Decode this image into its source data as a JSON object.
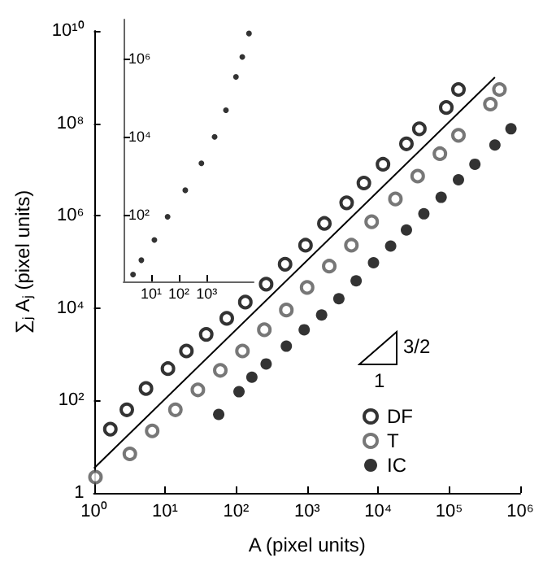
{
  "chart_data": [
    {
      "type": "scatter",
      "xlabel": "A (pixel units)",
      "ylabel": "∑$_{j}$ A$_{j}$ (pixel units)",
      "log": "xy",
      "marker": "circle",
      "legend": "bottom right",
      "grid": false,
      "xlim": [
        1,
        1000000
      ],
      "ylim": [
        1,
        10000000000
      ],
      "xticks": [
        {
          "value": 1,
          "label": "10⁰"
        },
        {
          "value": 10,
          "label": "10¹"
        },
        {
          "value": 100,
          "label": "10²"
        },
        {
          "value": 1000,
          "label": "10³"
        },
        {
          "value": 10000,
          "label": "10⁴"
        },
        {
          "value": 100000,
          "label": "10⁵"
        },
        {
          "value": 1000000,
          "label": "10⁶"
        }
      ],
      "yticks": [
        1,
        {
          "value": 100,
          "label": "10²"
        },
        {
          "value": 10000,
          "label": "10⁴"
        },
        {
          "value": 1000000,
          "label": "10⁶"
        },
        {
          "value": 100000000,
          "label": "10⁸"
        },
        {
          "value": 10000000000,
          "label": "10¹⁰"
        }
      ],
      "annotations": [
        "3/2",
        "1"
      ],
      "series": [
        {
          "name": "DF",
          "color": "#000000",
          "x": [
            1.7,
            2.9,
            5.4,
            11,
            20,
            38,
            74,
            135,
            265,
            490,
            950,
            1750,
            3600,
            6300,
            11700,
            25000,
            38000,
            91000,
            135000
          ],
          "values": [
            24,
            63,
            182,
            490,
            1180,
            2700,
            6000,
            13500,
            33000,
            89000,
            230000,
            680000,
            1900000,
            5100000,
            13000000,
            36000000,
            76000000,
            220000000,
            540000000
          ]
        },
        {
          "name": "T",
          "color": "#555555",
          "x": [
            1.05,
            3.2,
            6.6,
            14,
            29,
            60,
            123,
            250,
            510,
            1000,
            2050,
            4200,
            8100,
            17500,
            36000,
            74000,
            135000,
            380000,
            510000
          ],
          "values": [
            2.2,
            7,
            22,
            63,
            170,
            450,
            1180,
            3400,
            9100,
            28000,
            81000,
            230000,
            740000,
            2300000,
            7200000,
            22000000,
            55000000,
            260000000,
            540000000
          ]
        },
        {
          "name": "IC",
          "color": "#000000",
          "x": [
            57,
            110,
            167,
            265,
            510,
            910,
            1600,
            2800,
            4900,
            8600,
            15000,
            25000,
            44000,
            77000,
            135000,
            230000,
            440000,
            740000
          ],
          "values": [
            50,
            155,
            320,
            620,
            1500,
            3400,
            7100,
            16000,
            39000,
            96000,
            220000,
            490000,
            1100000,
            2500000,
            6000000,
            13000000,
            34000000,
            76000000
          ]
        },
        {
          "type": "line",
          "color": "#000000",
          "marker": "none",
          "x": [
            1,
            440000
          ],
          "values": [
            3.4,
            990000000
          ]
        }
      ]
    },
    {
      "type": "scatter",
      "log": "xy",
      "marker": "circle",
      "grid": false,
      "xlim": [
        1,
        50000
      ],
      "ylim": [
        2,
        10000000
      ],
      "xticks": [
        {
          "value": 10,
          "label": "10¹"
        },
        {
          "value": 100,
          "label": "10²"
        },
        {
          "value": 1000,
          "label": "10³"
        }
      ],
      "yticks": [
        {
          "value": 100,
          "label": "10²"
        },
        {
          "value": 10000,
          "label": "10⁴"
        },
        {
          "value": 1000000,
          "label": "10⁶"
        }
      ],
      "series": [
        {
          "color": "#000000",
          "x": [
            2.2,
            4.4,
            13,
            39,
            170,
            650,
            1950,
            5000,
            11500,
            19500,
            34000
          ],
          "values": [
            3,
            7,
            23,
            90,
            430,
            2100,
            10000,
            48000,
            340000,
            1100000,
            4400000
          ]
        }
      ]
    }
  ]
}
